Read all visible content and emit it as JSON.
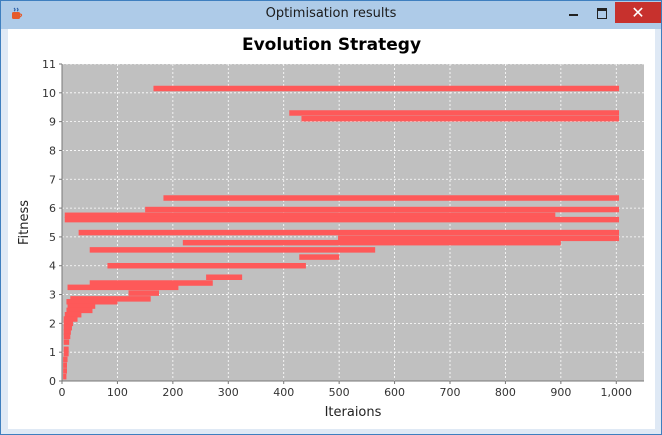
{
  "window": {
    "title": "Optimisation results",
    "close_glyph": "✕"
  },
  "icons": {
    "app": "java-cup-icon",
    "minimize": "minimize-icon",
    "maximize": "maximize-icon",
    "close": "close-icon"
  },
  "colors": {
    "bar": "#fe5959",
    "plot_bg": "#c0c0c0",
    "grid": "#ffffff"
  },
  "chart_data": {
    "type": "bar",
    "orientation": "horizontal",
    "title": "Evolution Strategy",
    "xlabel": "Iteraions",
    "ylabel": "Fitness",
    "xlim": [
      0,
      1050
    ],
    "ylim": [
      0,
      11
    ],
    "grid": true,
    "legend": "none",
    "x_ticks": [
      0,
      100,
      200,
      300,
      400,
      500,
      600,
      700,
      800,
      900,
      1000
    ],
    "x_tick_labels": [
      "0",
      "100",
      "200",
      "300",
      "400",
      "500",
      "600",
      "700",
      "800",
      "900",
      "1,000"
    ],
    "y_ticks": [
      0,
      1,
      2,
      3,
      4,
      5,
      6,
      7,
      8,
      9,
      10,
      11
    ],
    "y_tick_labels": [
      "0",
      "1",
      "2",
      "3",
      "4",
      "5",
      "6",
      "7",
      "8",
      "9",
      "10",
      "11"
    ],
    "bars": [
      {
        "y": 10.15,
        "x_start": 165,
        "x_end": 1005
      },
      {
        "y": 9.3,
        "x_start": 410,
        "x_end": 1005
      },
      {
        "y": 9.1,
        "x_start": 432,
        "x_end": 1005
      },
      {
        "y": 6.35,
        "x_start": 183,
        "x_end": 1005
      },
      {
        "y": 5.95,
        "x_start": 150,
        "x_end": 1005
      },
      {
        "y": 5.75,
        "x_start": 5,
        "x_end": 890
      },
      {
        "y": 5.6,
        "x_start": 5,
        "x_end": 1005
      },
      {
        "y": 5.15,
        "x_start": 30,
        "x_end": 1005
      },
      {
        "y": 4.95,
        "x_start": 498,
        "x_end": 1005
      },
      {
        "y": 4.8,
        "x_start": 218,
        "x_end": 900
      },
      {
        "y": 4.55,
        "x_start": 50,
        "x_end": 565
      },
      {
        "y": 4.3,
        "x_start": 428,
        "x_end": 500
      },
      {
        "y": 4.0,
        "x_start": 82,
        "x_end": 440
      },
      {
        "y": 3.6,
        "x_start": 260,
        "x_end": 325
      },
      {
        "y": 3.4,
        "x_start": 50,
        "x_end": 272
      },
      {
        "y": 3.25,
        "x_start": 10,
        "x_end": 210
      },
      {
        "y": 3.05,
        "x_start": 120,
        "x_end": 175
      },
      {
        "y": 2.85,
        "x_start": 15,
        "x_end": 160
      },
      {
        "y": 2.75,
        "x_start": 8,
        "x_end": 100
      },
      {
        "y": 2.6,
        "x_start": 10,
        "x_end": 60
      },
      {
        "y": 2.45,
        "x_start": 8,
        "x_end": 55
      },
      {
        "y": 2.3,
        "x_start": 5,
        "x_end": 35
      },
      {
        "y": 2.15,
        "x_start": 3,
        "x_end": 28
      },
      {
        "y": 2.0,
        "x_start": 3,
        "x_end": 20
      },
      {
        "y": 1.85,
        "x_start": 3,
        "x_end": 18
      },
      {
        "y": 1.7,
        "x_start": 3,
        "x_end": 16
      },
      {
        "y": 1.55,
        "x_start": 3,
        "x_end": 15
      },
      {
        "y": 1.35,
        "x_start": 3,
        "x_end": 13
      },
      {
        "y": 1.1,
        "x_start": 3,
        "x_end": 12
      },
      {
        "y": 0.95,
        "x_start": 3,
        "x_end": 12
      },
      {
        "y": 0.75,
        "x_start": 2,
        "x_end": 10
      },
      {
        "y": 0.55,
        "x_start": 2,
        "x_end": 9
      },
      {
        "y": 0.35,
        "x_start": 2,
        "x_end": 9
      },
      {
        "y": 0.15,
        "x_start": 2,
        "x_end": 8
      }
    ]
  }
}
